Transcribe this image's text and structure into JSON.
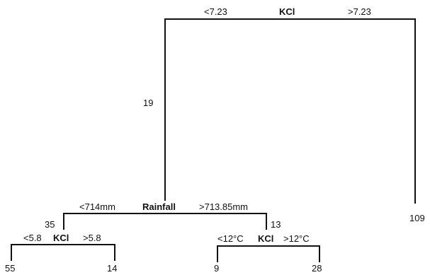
{
  "tree": {
    "root": {
      "variable": "KCl",
      "left_condition": "<7.23",
      "right_condition": ">7.23",
      "left_value": "19",
      "right_value": "109"
    },
    "node_rainfall": {
      "variable": "Rainfall",
      "left_condition": "<714mm",
      "right_condition": ">713.85mm",
      "left_value": "35",
      "right_value": "13"
    },
    "node_kcl_left": {
      "variable": "KCl",
      "left_condition": "<5.8",
      "right_condition": ">5.8",
      "left_value": "55",
      "right_value": "14"
    },
    "node_kcl_right": {
      "variable": "KCl",
      "left_condition": "<12°C",
      "right_condition": ">12°C",
      "left_value": "9",
      "right_value": "28"
    }
  }
}
